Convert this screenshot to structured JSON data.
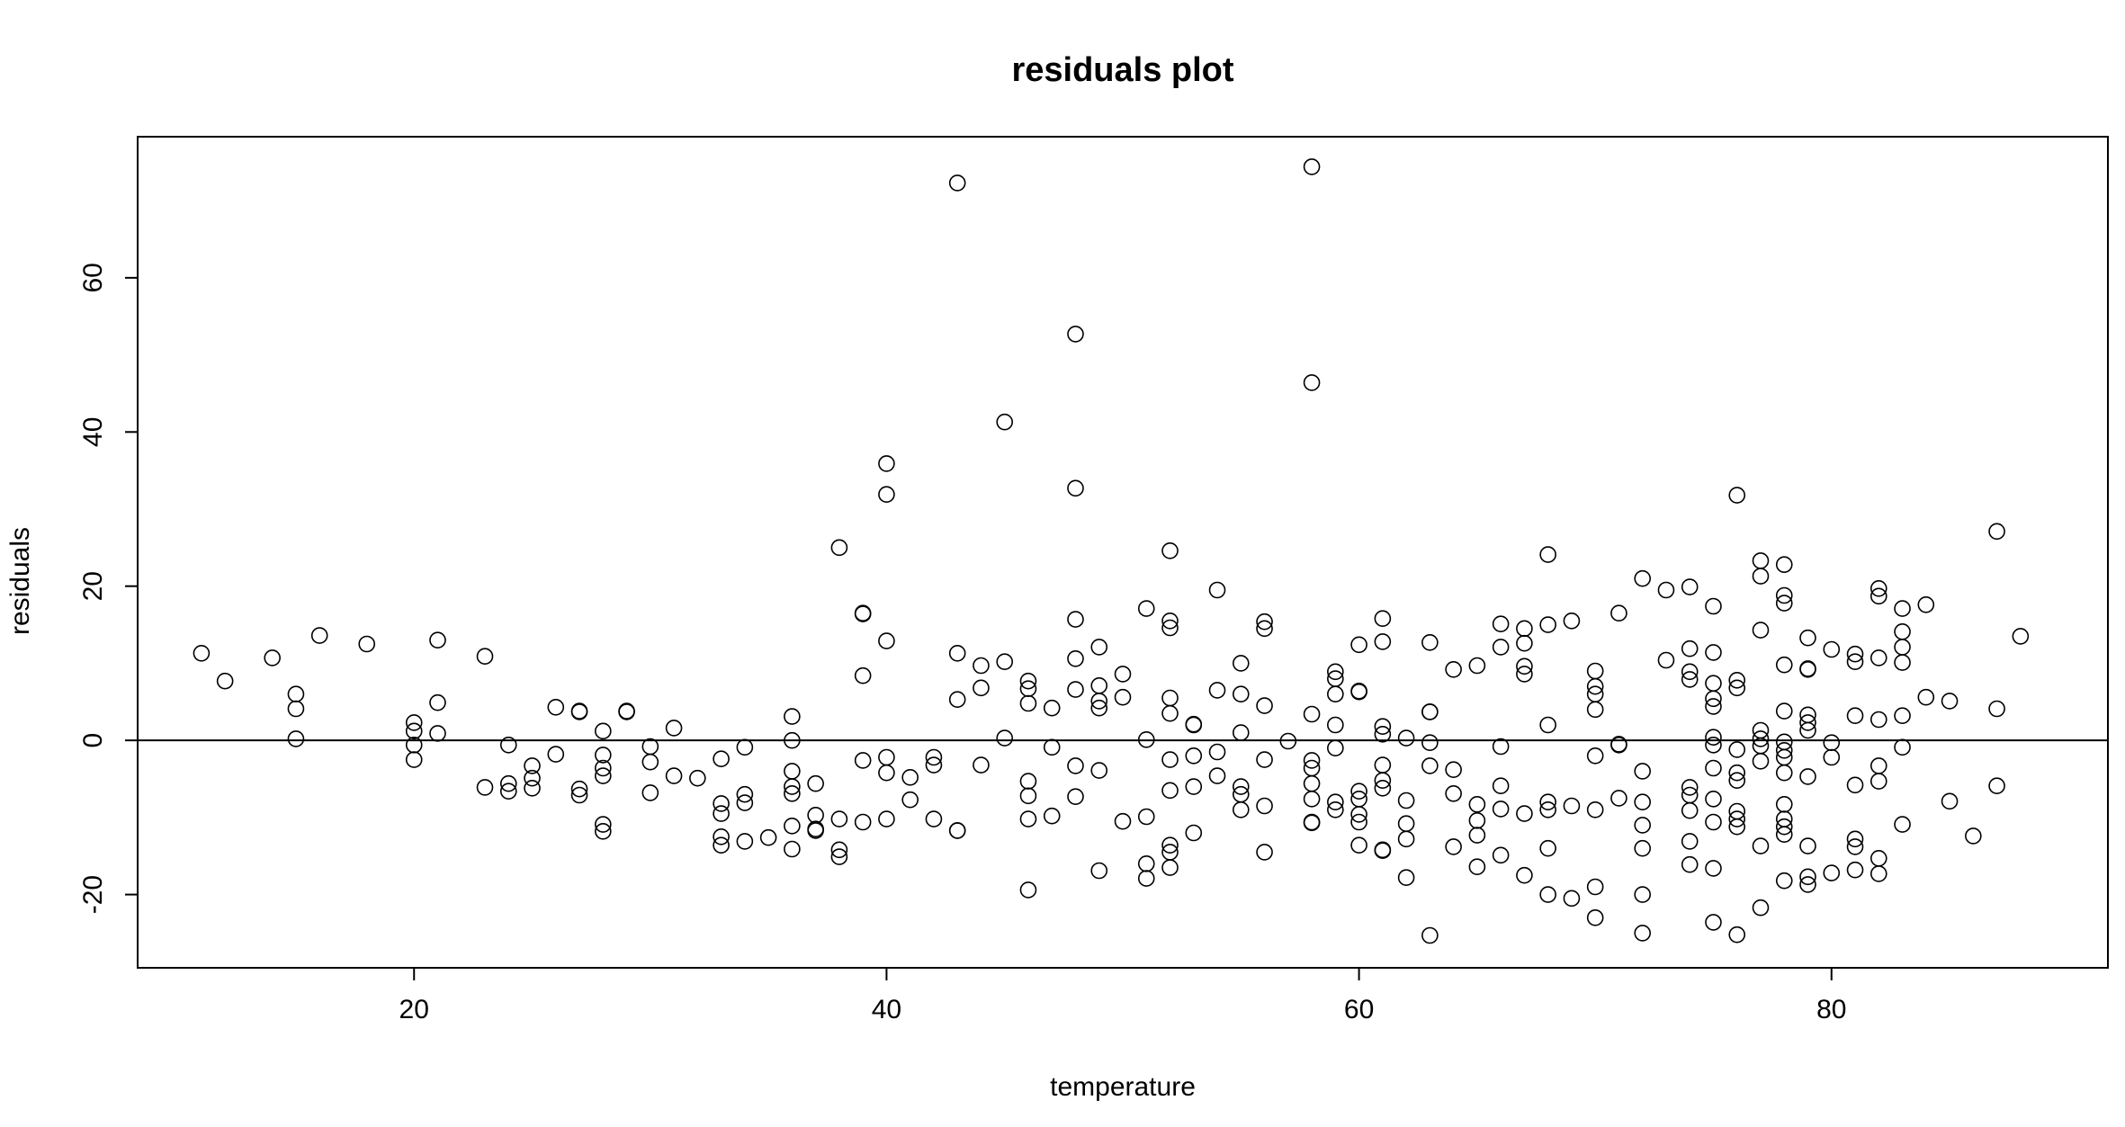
{
  "chart_data": {
    "type": "scatter",
    "title": "residuals plot",
    "xlabel": "temperature",
    "ylabel": "residuals",
    "xlim": [
      8.3,
      91.7
    ],
    "ylim": [
      -29.5,
      78.3
    ],
    "xticks": [
      20,
      40,
      60,
      80
    ],
    "yticks": [
      -20,
      0,
      20,
      40,
      60
    ],
    "reference_line": {
      "orientation": "horizontal",
      "value": 0
    },
    "grid": false,
    "legend": "none",
    "colors": {
      "points": "#000000",
      "axis": "#000000",
      "background": "#ffffff"
    },
    "marker": "open-circle",
    "points": [
      [
        11,
        11.3
      ],
      [
        12,
        7.7
      ],
      [
        14,
        10.7
      ],
      [
        15,
        6.0
      ],
      [
        15,
        4.1
      ],
      [
        15,
        0.2
      ],
      [
        16,
        13.6
      ],
      [
        18,
        12.5
      ],
      [
        20,
        2.3
      ],
      [
        20,
        1.2
      ],
      [
        20,
        -0.6
      ],
      [
        20,
        -2.5
      ],
      [
        21,
        4.9
      ],
      [
        21,
        13.0
      ],
      [
        21,
        0.9
      ],
      [
        23,
        10.9
      ],
      [
        23,
        -6.1
      ],
      [
        24,
        -0.6
      ],
      [
        24,
        -5.6
      ],
      [
        24,
        -6.6
      ],
      [
        25,
        -3.3
      ],
      [
        25,
        -4.9
      ],
      [
        25,
        -6.2
      ],
      [
        26,
        -1.8
      ],
      [
        26,
        4.3
      ],
      [
        27,
        3.7
      ],
      [
        27,
        3.8
      ],
      [
        27,
        -6.3
      ],
      [
        27,
        -7.1
      ],
      [
        28,
        1.2
      ],
      [
        28,
        -1.9
      ],
      [
        28,
        -3.6
      ],
      [
        28,
        -4.6
      ],
      [
        28,
        -10.9
      ],
      [
        28,
        -11.8
      ],
      [
        29,
        3.8
      ],
      [
        29,
        3.7
      ],
      [
        30,
        -0.8
      ],
      [
        30,
        -2.8
      ],
      [
        30,
        -6.8
      ],
      [
        31,
        1.6
      ],
      [
        31,
        -4.6
      ],
      [
        32,
        -4.9
      ],
      [
        33,
        -2.4
      ],
      [
        33,
        -8.2
      ],
      [
        33,
        -9.5
      ],
      [
        33,
        -12.5
      ],
      [
        33,
        -13.6
      ],
      [
        34,
        -0.9
      ],
      [
        34,
        -7.0
      ],
      [
        34,
        -8.1
      ],
      [
        34,
        -13.1
      ],
      [
        35,
        -12.6
      ],
      [
        36,
        3.1
      ],
      [
        36,
        0.0
      ],
      [
        36,
        -4.0
      ],
      [
        36,
        -6.0
      ],
      [
        36,
        -6.9
      ],
      [
        36,
        -11.1
      ],
      [
        36,
        -14.1
      ],
      [
        37,
        -5.6
      ],
      [
        37,
        -9.7
      ],
      [
        37,
        -11.5
      ],
      [
        37,
        -11.7
      ],
      [
        38,
        25.0
      ],
      [
        38,
        -10.2
      ],
      [
        38,
        -14.2
      ],
      [
        38,
        -15.1
      ],
      [
        39,
        16.5
      ],
      [
        39,
        16.4
      ],
      [
        39,
        8.4
      ],
      [
        39,
        -2.6
      ],
      [
        39,
        -10.6
      ],
      [
        40,
        35.9
      ],
      [
        40,
        31.9
      ],
      [
        40,
        12.9
      ],
      [
        40,
        -2.2
      ],
      [
        40,
        -4.2
      ],
      [
        40,
        -10.2
      ],
      [
        41,
        -4.8
      ],
      [
        41,
        -7.7
      ],
      [
        42,
        -2.2
      ],
      [
        42,
        -3.2
      ],
      [
        42,
        -10.2
      ],
      [
        43,
        72.3
      ],
      [
        43,
        11.3
      ],
      [
        43,
        5.3
      ],
      [
        43,
        -11.7
      ],
      [
        43,
        -11.7
      ],
      [
        44,
        9.7
      ],
      [
        44,
        6.8
      ],
      [
        44,
        -3.2
      ],
      [
        45,
        41.3
      ],
      [
        45,
        10.2
      ],
      [
        45,
        0.3
      ],
      [
        46,
        7.7
      ],
      [
        46,
        6.7
      ],
      [
        46,
        4.8
      ],
      [
        46,
        -5.3
      ],
      [
        46,
        -7.2
      ],
      [
        46,
        -10.2
      ],
      [
        46,
        -19.4
      ],
      [
        47,
        4.2
      ],
      [
        47,
        -0.9
      ],
      [
        47,
        -9.8
      ],
      [
        48,
        52.7
      ],
      [
        48,
        32.7
      ],
      [
        48,
        15.7
      ],
      [
        48,
        10.6
      ],
      [
        48,
        6.6
      ],
      [
        48,
        -3.3
      ],
      [
        48,
        -7.3
      ],
      [
        49,
        12.1
      ],
      [
        49,
        7.1
      ],
      [
        49,
        5.1
      ],
      [
        49,
        4.2
      ],
      [
        49,
        -3.9
      ],
      [
        49,
        -16.9
      ],
      [
        50,
        8.6
      ],
      [
        50,
        5.6
      ],
      [
        50,
        -10.5
      ],
      [
        51,
        17.1
      ],
      [
        51,
        0.1
      ],
      [
        51,
        -9.9
      ],
      [
        51,
        -16.0
      ],
      [
        51,
        -17.9
      ],
      [
        52,
        24.6
      ],
      [
        52,
        15.5
      ],
      [
        52,
        14.6
      ],
      [
        52,
        5.5
      ],
      [
        52,
        3.5
      ],
      [
        52,
        -2.5
      ],
      [
        52,
        -6.5
      ],
      [
        52,
        -13.6
      ],
      [
        52,
        -14.5
      ],
      [
        52,
        -16.5
      ],
      [
        53,
        2.1
      ],
      [
        53,
        2.0
      ],
      [
        53,
        -2.0
      ],
      [
        53,
        -6.0
      ],
      [
        53,
        -12.0
      ],
      [
        54,
        19.5
      ],
      [
        54,
        6.5
      ],
      [
        54,
        -1.5
      ],
      [
        54,
        -4.6
      ],
      [
        55,
        10.0
      ],
      [
        55,
        6.0
      ],
      [
        55,
        1.0
      ],
      [
        55,
        -6.0
      ],
      [
        55,
        -7.0
      ],
      [
        55,
        -9.0
      ],
      [
        56,
        15.4
      ],
      [
        56,
        14.5
      ],
      [
        56,
        4.5
      ],
      [
        56,
        -2.5
      ],
      [
        56,
        -8.5
      ],
      [
        56,
        -14.5
      ],
      [
        57,
        -0.1
      ],
      [
        58,
        74.4
      ],
      [
        58,
        46.4
      ],
      [
        58,
        3.4
      ],
      [
        58,
        -2.6
      ],
      [
        58,
        -3.6
      ],
      [
        58,
        -5.6
      ],
      [
        58,
        -7.6
      ],
      [
        58,
        -10.6
      ],
      [
        58,
        -10.7
      ],
      [
        59,
        8.9
      ],
      [
        59,
        8.0
      ],
      [
        59,
        6.0
      ],
      [
        59,
        2.0
      ],
      [
        59,
        -1.0
      ],
      [
        59,
        -8.0
      ],
      [
        59,
        -9.0
      ],
      [
        60,
        12.4
      ],
      [
        60,
        6.4
      ],
      [
        60,
        6.3
      ],
      [
        60,
        -6.6
      ],
      [
        60,
        -7.6
      ],
      [
        60,
        -9.6
      ],
      [
        60,
        -10.6
      ],
      [
        60,
        -13.6
      ],
      [
        61,
        15.8
      ],
      [
        61,
        12.8
      ],
      [
        61,
        1.8
      ],
      [
        61,
        0.8
      ],
      [
        61,
        -3.2
      ],
      [
        61,
        -5.2
      ],
      [
        61,
        -6.2
      ],
      [
        61,
        -14.2
      ],
      [
        61,
        -14.3
      ],
      [
        62,
        0.3
      ],
      [
        62,
        -7.8
      ],
      [
        62,
        -10.8
      ],
      [
        62,
        -12.8
      ],
      [
        62,
        -17.8
      ],
      [
        63,
        12.7
      ],
      [
        63,
        3.7
      ],
      [
        63,
        3.7
      ],
      [
        63,
        -0.3
      ],
      [
        63,
        -3.3
      ],
      [
        63,
        -25.3
      ],
      [
        64,
        9.2
      ],
      [
        64,
        -3.8
      ],
      [
        64,
        -6.9
      ],
      [
        64,
        -13.8
      ],
      [
        65,
        9.7
      ],
      [
        65,
        -8.3
      ],
      [
        65,
        -10.4
      ],
      [
        65,
        -12.3
      ],
      [
        65,
        -16.4
      ],
      [
        66,
        15.1
      ],
      [
        66,
        12.1
      ],
      [
        66,
        -0.8
      ],
      [
        66,
        -5.9
      ],
      [
        66,
        -8.9
      ],
      [
        66,
        -14.9
      ],
      [
        67,
        14.5
      ],
      [
        67,
        12.6
      ],
      [
        67,
        9.6
      ],
      [
        67,
        8.6
      ],
      [
        67,
        -9.5
      ],
      [
        67,
        -17.5
      ],
      [
        68,
        24.1
      ],
      [
        68,
        15.0
      ],
      [
        68,
        2.0
      ],
      [
        68,
        -8.0
      ],
      [
        68,
        -9.0
      ],
      [
        68,
        -14.0
      ],
      [
        68,
        -20.0
      ],
      [
        69,
        15.5
      ],
      [
        69,
        -8.5
      ],
      [
        69,
        -20.5
      ],
      [
        70,
        9.0
      ],
      [
        70,
        7.0
      ],
      [
        70,
        6.0
      ],
      [
        70,
        4.0
      ],
      [
        70,
        -2.0
      ],
      [
        70,
        -9.0
      ],
      [
        70,
        -19.0
      ],
      [
        70,
        -23.0
      ],
      [
        71,
        16.5
      ],
      [
        71,
        -0.5
      ],
      [
        71,
        -0.6
      ],
      [
        71,
        -7.5
      ],
      [
        72,
        21.0
      ],
      [
        72,
        -4.0
      ],
      [
        72,
        -8.0
      ],
      [
        72,
        -11.0
      ],
      [
        72,
        -14.0
      ],
      [
        72,
        -20.0
      ],
      [
        72,
        -25.0
      ],
      [
        73,
        19.5
      ],
      [
        73,
        10.4
      ],
      [
        74,
        19.9
      ],
      [
        74,
        11.9
      ],
      [
        74,
        8.9
      ],
      [
        74,
        7.9
      ],
      [
        74,
        -6.1
      ],
      [
        74,
        -7.1
      ],
      [
        74,
        -9.1
      ],
      [
        74,
        -13.1
      ],
      [
        74,
        -16.1
      ],
      [
        75,
        17.4
      ],
      [
        75,
        11.4
      ],
      [
        75,
        7.4
      ],
      [
        75,
        5.4
      ],
      [
        75,
        4.4
      ],
      [
        75,
        0.4
      ],
      [
        75,
        -0.6
      ],
      [
        75,
        -3.6
      ],
      [
        75,
        -7.6
      ],
      [
        75,
        -10.6
      ],
      [
        75,
        -16.6
      ],
      [
        75,
        -23.6
      ],
      [
        76,
        31.8
      ],
      [
        76,
        7.8
      ],
      [
        76,
        6.8
      ],
      [
        76,
        -1.2
      ],
      [
        76,
        -4.2
      ],
      [
        76,
        -5.2
      ],
      [
        76,
        -9.2
      ],
      [
        76,
        -10.2
      ],
      [
        76,
        -11.2
      ],
      [
        76,
        -25.2
      ],
      [
        77,
        23.3
      ],
      [
        77,
        21.3
      ],
      [
        77,
        14.3
      ],
      [
        77,
        1.3
      ],
      [
        77,
        0.2
      ],
      [
        77,
        -0.7
      ],
      [
        77,
        -2.7
      ],
      [
        77,
        -13.7
      ],
      [
        77,
        -21.7
      ],
      [
        78,
        22.8
      ],
      [
        78,
        18.8
      ],
      [
        78,
        17.8
      ],
      [
        78,
        9.8
      ],
      [
        78,
        3.8
      ],
      [
        78,
        -0.2
      ],
      [
        78,
        -1.3
      ],
      [
        78,
        -2.2
      ],
      [
        78,
        -4.2
      ],
      [
        78,
        -8.3
      ],
      [
        78,
        -10.2
      ],
      [
        78,
        -11.2
      ],
      [
        78,
        -12.2
      ],
      [
        78,
        -18.2
      ],
      [
        79,
        13.3
      ],
      [
        79,
        9.3
      ],
      [
        79,
        9.2
      ],
      [
        79,
        3.3
      ],
      [
        79,
        2.3
      ],
      [
        79,
        1.3
      ],
      [
        79,
        -4.7
      ],
      [
        79,
        -13.7
      ],
      [
        79,
        -17.7
      ],
      [
        79,
        -18.7
      ],
      [
        80,
        11.8
      ],
      [
        80,
        -0.3
      ],
      [
        80,
        -2.2
      ],
      [
        80,
        -17.2
      ],
      [
        81,
        11.2
      ],
      [
        81,
        10.2
      ],
      [
        81,
        3.2
      ],
      [
        81,
        -5.8
      ],
      [
        81,
        -12.8
      ],
      [
        81,
        -13.8
      ],
      [
        81,
        -16.8
      ],
      [
        82,
        19.7
      ],
      [
        82,
        18.7
      ],
      [
        82,
        10.7
      ],
      [
        82,
        2.7
      ],
      [
        82,
        -3.3
      ],
      [
        82,
        -5.3
      ],
      [
        82,
        -15.3
      ],
      [
        82,
        -17.3
      ],
      [
        83,
        17.1
      ],
      [
        83,
        14.1
      ],
      [
        83,
        12.1
      ],
      [
        83,
        10.1
      ],
      [
        83,
        3.2
      ],
      [
        83,
        -0.9
      ],
      [
        83,
        -10.9
      ],
      [
        84,
        17.6
      ],
      [
        84,
        5.6
      ],
      [
        85,
        5.1
      ],
      [
        85,
        -7.9
      ],
      [
        86,
        -12.4
      ],
      [
        87,
        27.1
      ],
      [
        87,
        4.1
      ],
      [
        87,
        -5.9
      ],
      [
        88,
        13.5
      ]
    ]
  }
}
